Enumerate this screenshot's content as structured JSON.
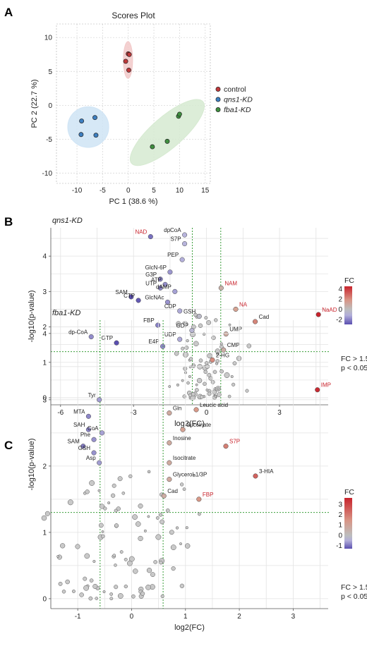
{
  "chart_data": [
    {
      "panel": "A",
      "type": "scatter",
      "title": "Scores Plot",
      "xlabel": "PC 1 (38.6 %)",
      "ylabel": "PC 2 (22.7 %)",
      "xlim": [
        -14,
        16
      ],
      "ylim": [
        -11.5,
        12
      ],
      "xticks": [
        -10,
        -5,
        0,
        5,
        10,
        15
      ],
      "yticks": [
        -10,
        -5,
        0,
        5,
        10
      ],
      "grid": true,
      "legend_position": "right",
      "series": [
        {
          "name": "control",
          "color": "#c0393b",
          "fill": "#f2c9c9",
          "x": [
            0.0,
            -0.5,
            0.2,
            0.1
          ],
          "y": [
            7.6,
            6.5,
            7.5,
            5.2
          ],
          "ellipse": {
            "cx": -0.05,
            "cy": 6.7,
            "rx": 0.9,
            "ry": 2.7,
            "angle": 0
          }
        },
        {
          "name": "qns1-KD",
          "color": "#3d7fc1",
          "fill": "#cfe4f5",
          "x": [
            -9.1,
            -6.5,
            -9.2,
            -6.3
          ],
          "y": [
            -2.3,
            -1.8,
            -4.3,
            -4.4
          ],
          "ellipse": {
            "cx": -7.8,
            "cy": -3.2,
            "rx": 4.0,
            "ry": 3.0,
            "angle": 0
          }
        },
        {
          "name": "fba1-KD",
          "color": "#3f8f3f",
          "fill": "#d6ead1",
          "x": [
            4.7,
            9.8,
            10.0,
            7.6
          ],
          "y": [
            -6.1,
            -1.6,
            -1.3,
            -5.3
          ],
          "ellipse": {
            "cx": 7.6,
            "cy": -4.0,
            "rx": 9.2,
            "ry": 2.3,
            "angle": 41
          }
        }
      ]
    },
    {
      "panel": "B",
      "type": "scatter",
      "title": "qns1-KD",
      "xlabel": "log2(FC)",
      "ylabel": "-log10(p-value)",
      "xlim": [
        -6.4,
        5.0
      ],
      "ylim": [
        -0.2,
        4.8
      ],
      "xticks": [
        -6,
        -3,
        0,
        3
      ],
      "yticks": [
        0,
        1,
        2,
        3,
        4
      ],
      "thresholds": {
        "x": [
          -0.585,
          0.585
        ],
        "y": 1.301
      },
      "colorbar": {
        "title": "FC",
        "ticks": [
          4,
          2,
          0,
          -2
        ],
        "min": -3,
        "max": 4.5
      },
      "note": [
        "FC > 1.5",
        "p < 0.05"
      ],
      "points": [
        {
          "label": "NAD",
          "x": -2.3,
          "y": 4.55,
          "labelColor": "red"
        },
        {
          "label": "dpCoA",
          "x": -0.9,
          "y": 4.6
        },
        {
          "label": "S7P",
          "x": -0.9,
          "y": 4.35
        },
        {
          "label": "PEP",
          "x": -1.0,
          "y": 3.9
        },
        {
          "label": "GlcN-6P",
          "x": -1.5,
          "y": 3.55
        },
        {
          "label": "G3P",
          "x": -1.9,
          "y": 3.35
        },
        {
          "label": "ATP",
          "x": -1.7,
          "y": 3.2
        },
        {
          "label": "UTP",
          "x": -1.9,
          "y": 3.1
        },
        {
          "label": "dAMP",
          "x": -1.3,
          "y": 3.0
        },
        {
          "label": "SAM",
          "x": -3.1,
          "y": 2.85
        },
        {
          "label": "CTP",
          "x": -2.8,
          "y": 2.75
        },
        {
          "label": "GlcNAc",
          "x": -1.6,
          "y": 2.7
        },
        {
          "label": "CDP",
          "x": -1.1,
          "y": 2.45
        },
        {
          "label": "GSH",
          "x": -0.3,
          "y": 2.3
        },
        {
          "label": "FBP",
          "x": -2.0,
          "y": 2.05
        },
        {
          "label": "GDP",
          "x": -0.6,
          "y": 1.9
        },
        {
          "label": "UDP",
          "x": -1.1,
          "y": 1.65
        },
        {
          "label": "E4P",
          "x": -1.8,
          "y": 1.45
        },
        {
          "label": "GTP",
          "x": -3.7,
          "y": 1.55
        },
        {
          "label": "NAM",
          "x": 0.6,
          "y": 3.1,
          "labelColor": "red"
        },
        {
          "label": "NA",
          "x": 1.2,
          "y": 2.5,
          "labelColor": "red"
        },
        {
          "label": "Cad",
          "x": 2.0,
          "y": 2.15
        },
        {
          "label": "NaAD",
          "x": 4.6,
          "y": 2.35,
          "labelColor": "red"
        },
        {
          "label": "UMP",
          "x": 0.8,
          "y": 1.8
        },
        {
          "label": "CMP",
          "x": 0.7,
          "y": 1.35
        }
      ]
    },
    {
      "panel": "C",
      "type": "scatter",
      "title": "fba1-KD",
      "xlabel": "log2(FC)",
      "ylabel": "-log10(p-value)",
      "xlim": [
        -1.5,
        3.65
      ],
      "ylim": [
        -0.15,
        4.2
      ],
      "xticks": [
        -1,
        0,
        1,
        2,
        3
      ],
      "yticks": [
        0,
        1,
        2,
        3,
        4
      ],
      "thresholds": {
        "x": [
          -0.585,
          0.585
        ],
        "y": 1.301
      },
      "colorbar": {
        "title": "FC",
        "ticks": [
          3,
          2,
          1,
          0,
          -1
        ],
        "min": -1.3,
        "max": 3.6
      },
      "note": [
        "FC > 1.5",
        "p < 0.05"
      ],
      "points": [
        {
          "label": "dp-CoA",
          "x": -0.75,
          "y": 3.95
        },
        {
          "label": "Tyr",
          "x": -0.6,
          "y": 3.0
        },
        {
          "label": "MTA",
          "x": -0.8,
          "y": 2.75
        },
        {
          "label": "SAH",
          "x": -0.8,
          "y": 2.55
        },
        {
          "label": "CoA",
          "x": -0.55,
          "y": 2.5
        },
        {
          "label": "Phe",
          "x": -0.7,
          "y": 2.4
        },
        {
          "label": "SAM",
          "x": -0.9,
          "y": 2.3
        },
        {
          "label": "GSH",
          "x": -0.7,
          "y": 2.2
        },
        {
          "label": "Asp",
          "x": -0.6,
          "y": 2.05
        },
        {
          "label": "2-HG",
          "x": 1.5,
          "y": 3.6
        },
        {
          "label": "IMP",
          "x": 3.45,
          "y": 3.15,
          "labelColor": "red"
        },
        {
          "label": "Gln",
          "x": 0.7,
          "y": 2.8
        },
        {
          "label": "Leucic acid",
          "x": 1.2,
          "y": 2.85
        },
        {
          "label": "Succinate",
          "x": 0.95,
          "y": 2.55
        },
        {
          "label": "Inosine",
          "x": 0.7,
          "y": 2.35
        },
        {
          "label": "S7P",
          "x": 1.75,
          "y": 2.3,
          "labelColor": "red"
        },
        {
          "label": "Isocitrate",
          "x": 0.7,
          "y": 2.05
        },
        {
          "label": "3-HIA",
          "x": 2.3,
          "y": 1.85
        },
        {
          "label": "Glycerol-1/3P",
          "x": 0.7,
          "y": 1.8
        },
        {
          "label": "Cad",
          "x": 0.6,
          "y": 1.55
        },
        {
          "label": "FBP",
          "x": 1.25,
          "y": 1.5,
          "labelColor": "red"
        }
      ]
    }
  ]
}
